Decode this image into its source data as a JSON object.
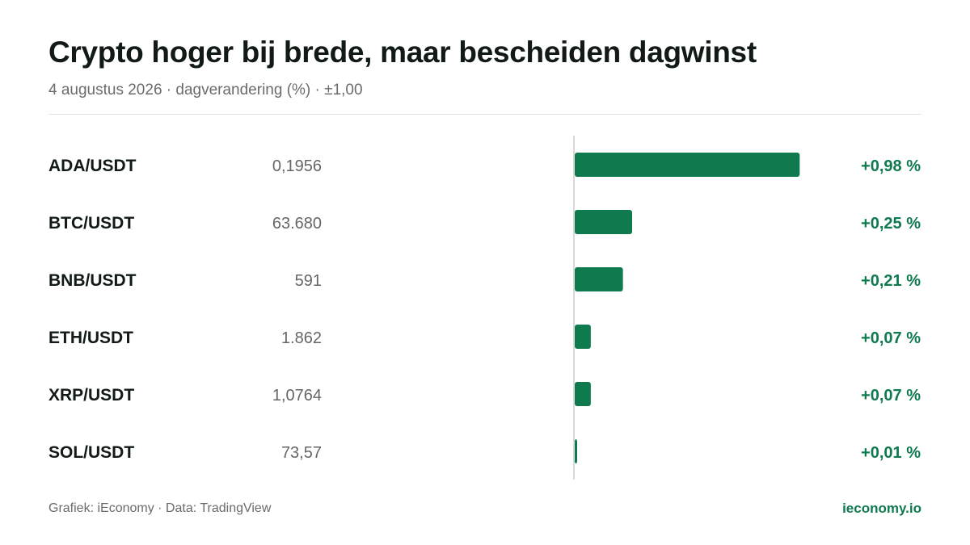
{
  "header": {
    "title": "Crypto hoger bij brede, maar bescheiden dagwinst",
    "subtitle": "4 augustus 2026 · dagverandering (%) · ±1,00"
  },
  "footer": {
    "credit": "Grafiek: iEconomy · Data: TradingView",
    "brand": "ieconomy.io"
  },
  "colors": {
    "positive": "#0e7a4d",
    "axis": "#d9d9d9"
  },
  "chart_data": {
    "type": "bar",
    "orientation": "horizontal",
    "xlim": [
      0,
      1.0
    ],
    "grid": false,
    "legend": "none",
    "rows": [
      {
        "pair": "ADA/USDT",
        "price": "0,1956",
        "change": 0.98,
        "label": "+0,98 %"
      },
      {
        "pair": "BTC/USDT",
        "price": "63.680",
        "change": 0.25,
        "label": "+0,25 %"
      },
      {
        "pair": "BNB/USDT",
        "price": "591",
        "change": 0.21,
        "label": "+0,21 %"
      },
      {
        "pair": "ETH/USDT",
        "price": "1.862",
        "change": 0.07,
        "label": "+0,07 %"
      },
      {
        "pair": "XRP/USDT",
        "price": "1,0764",
        "change": 0.07,
        "label": "+0,07 %"
      },
      {
        "pair": "SOL/USDT",
        "price": "73,57",
        "change": 0.01,
        "label": "+0,01 %"
      }
    ]
  }
}
